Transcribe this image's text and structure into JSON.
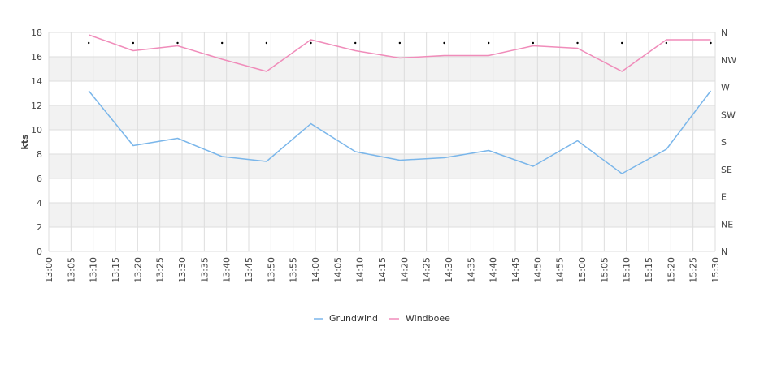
{
  "chart_data": {
    "type": "line",
    "ylabel": "kts",
    "ylim": [
      0,
      18
    ],
    "y_ticks": [
      "0",
      "2",
      "4",
      "6",
      "8",
      "10",
      "12",
      "14",
      "16",
      "18"
    ],
    "right_axis_ticks": [
      "N",
      "NE",
      "E",
      "SE",
      "S",
      "SW",
      "W",
      "NW",
      "N"
    ],
    "x_ticks": [
      "13:00",
      "13:05",
      "13:10",
      "13:15",
      "13:20",
      "13:25",
      "13:30",
      "13:35",
      "13:40",
      "13:45",
      "13:50",
      "13:55",
      "14:00",
      "14:05",
      "14:10",
      "14:15",
      "14:20",
      "14:25",
      "14:30",
      "14:35",
      "14:40",
      "14:45",
      "14:50",
      "14:55",
      "15:00",
      "15:05",
      "15:10",
      "15:15",
      "15:20",
      "15:25",
      "15:30"
    ],
    "x": [
      "13:09",
      "13:19",
      "13:29",
      "13:39",
      "13:49",
      "13:59",
      "14:09",
      "14:19",
      "14:29",
      "14:39",
      "14:49",
      "14:59",
      "15:09",
      "15:19",
      "15:29"
    ],
    "series": [
      {
        "name": "Grundwind",
        "color": "#7ab6ea",
        "values": [
          13.2,
          8.7,
          9.3,
          7.8,
          7.4,
          10.5,
          8.2,
          7.5,
          7.7,
          8.3,
          7.0,
          9.1,
          6.4,
          8.4,
          13.2
        ]
      },
      {
        "name": "Windboee",
        "color": "#f08cba",
        "values": [
          17.8,
          16.5,
          16.9,
          15.8,
          14.8,
          17.4,
          16.5,
          15.9,
          16.1,
          16.1,
          16.9,
          16.7,
          14.8,
          17.4,
          17.4
        ]
      }
    ],
    "direction_markers": [
      0.9,
      0.9,
      0.9,
      0.9,
      0.9,
      0.9,
      0.9,
      0.9,
      0.9,
      0.9,
      0.9,
      0.9,
      0.9,
      0.9,
      0.9
    ],
    "grid": true,
    "legend_position": "bottom-center",
    "band_color": "#f2f2f2",
    "grid_color": "#dddddd"
  }
}
